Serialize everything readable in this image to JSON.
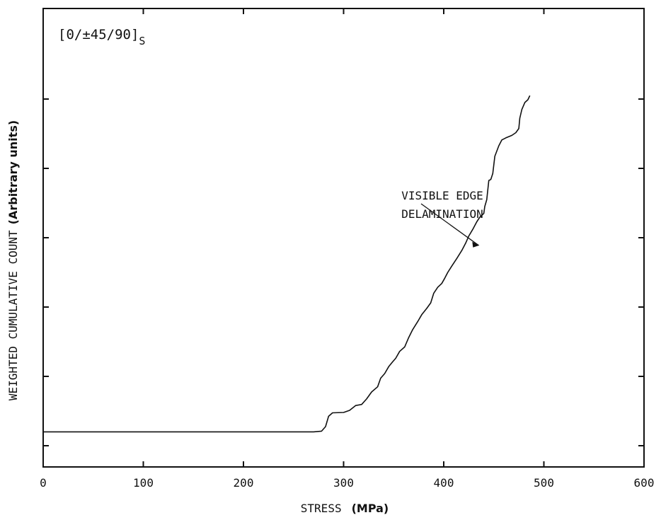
{
  "chart_data": {
    "type": "line",
    "xlabel": "STRESS",
    "xlabel_unit": "(MPa)",
    "ylabel": "WEIGHTED CUMULATIVE COUNT",
    "ylabel_unit": "(Arbitrary units)",
    "xlim": [
      0,
      600
    ],
    "x_ticks": [
      0,
      100,
      200,
      300,
      400,
      500,
      600
    ],
    "x_tick_labels": [
      "0",
      "100",
      "200",
      "300",
      "400",
      "500",
      "600"
    ],
    "ylim": [
      0,
      100
    ],
    "y_ticks": [
      0,
      20,
      40,
      60,
      80,
      100
    ],
    "y_tick_labels": [],
    "grid": false,
    "legend": false,
    "layup": {
      "main": "[0/±45/90]",
      "sub": "S"
    },
    "annotation": {
      "lines": [
        "VISIBLE EDGE",
        "DELAMINATION"
      ],
      "target": {
        "x": 437,
        "y": 58
      }
    },
    "series": [
      {
        "color": "#111111",
        "points": [
          [
            0,
            4
          ],
          [
            270,
            4
          ],
          [
            278,
            4.2
          ],
          [
            282,
            5.5
          ],
          [
            285,
            8.5
          ],
          [
            289,
            9.5
          ],
          [
            300,
            9.6
          ],
          [
            306,
            10.2
          ],
          [
            312,
            11.6
          ],
          [
            318,
            11.9
          ],
          [
            323,
            13.5
          ],
          [
            328,
            15.5
          ],
          [
            334,
            17
          ],
          [
            337,
            19.5
          ],
          [
            341,
            20.8
          ],
          [
            345,
            22.8
          ],
          [
            349,
            24.2
          ],
          [
            352,
            25.2
          ],
          [
            356,
            27.2
          ],
          [
            361,
            28.5
          ],
          [
            365,
            31.2
          ],
          [
            369,
            33.5
          ],
          [
            374,
            35.8
          ],
          [
            378,
            37.8
          ],
          [
            383,
            39.6
          ],
          [
            387,
            41.2
          ],
          [
            390,
            44
          ],
          [
            394,
            45.7
          ],
          [
            398,
            46.8
          ],
          [
            401,
            48.3
          ],
          [
            404,
            50
          ],
          [
            408,
            51.8
          ],
          [
            413,
            54
          ],
          [
            418,
            56.3
          ],
          [
            422,
            58.5
          ],
          [
            425,
            60.5
          ],
          [
            429,
            62.4
          ],
          [
            433,
            64.6
          ],
          [
            436,
            65.9
          ],
          [
            440,
            67
          ],
          [
            441,
            69
          ],
          [
            443,
            71
          ],
          [
            445,
            76.5
          ],
          [
            447,
            76.8
          ],
          [
            449,
            78.5
          ],
          [
            451,
            83.5
          ],
          [
            455,
            86.5
          ],
          [
            458,
            88.2
          ],
          [
            462,
            88.8
          ],
          [
            468,
            89.5
          ],
          [
            472,
            90.3
          ],
          [
            475,
            91.5
          ],
          [
            476,
            94.5
          ],
          [
            478,
            97
          ],
          [
            481,
            99
          ],
          [
            484,
            99.8
          ],
          [
            486,
            101
          ]
        ]
      }
    ]
  }
}
